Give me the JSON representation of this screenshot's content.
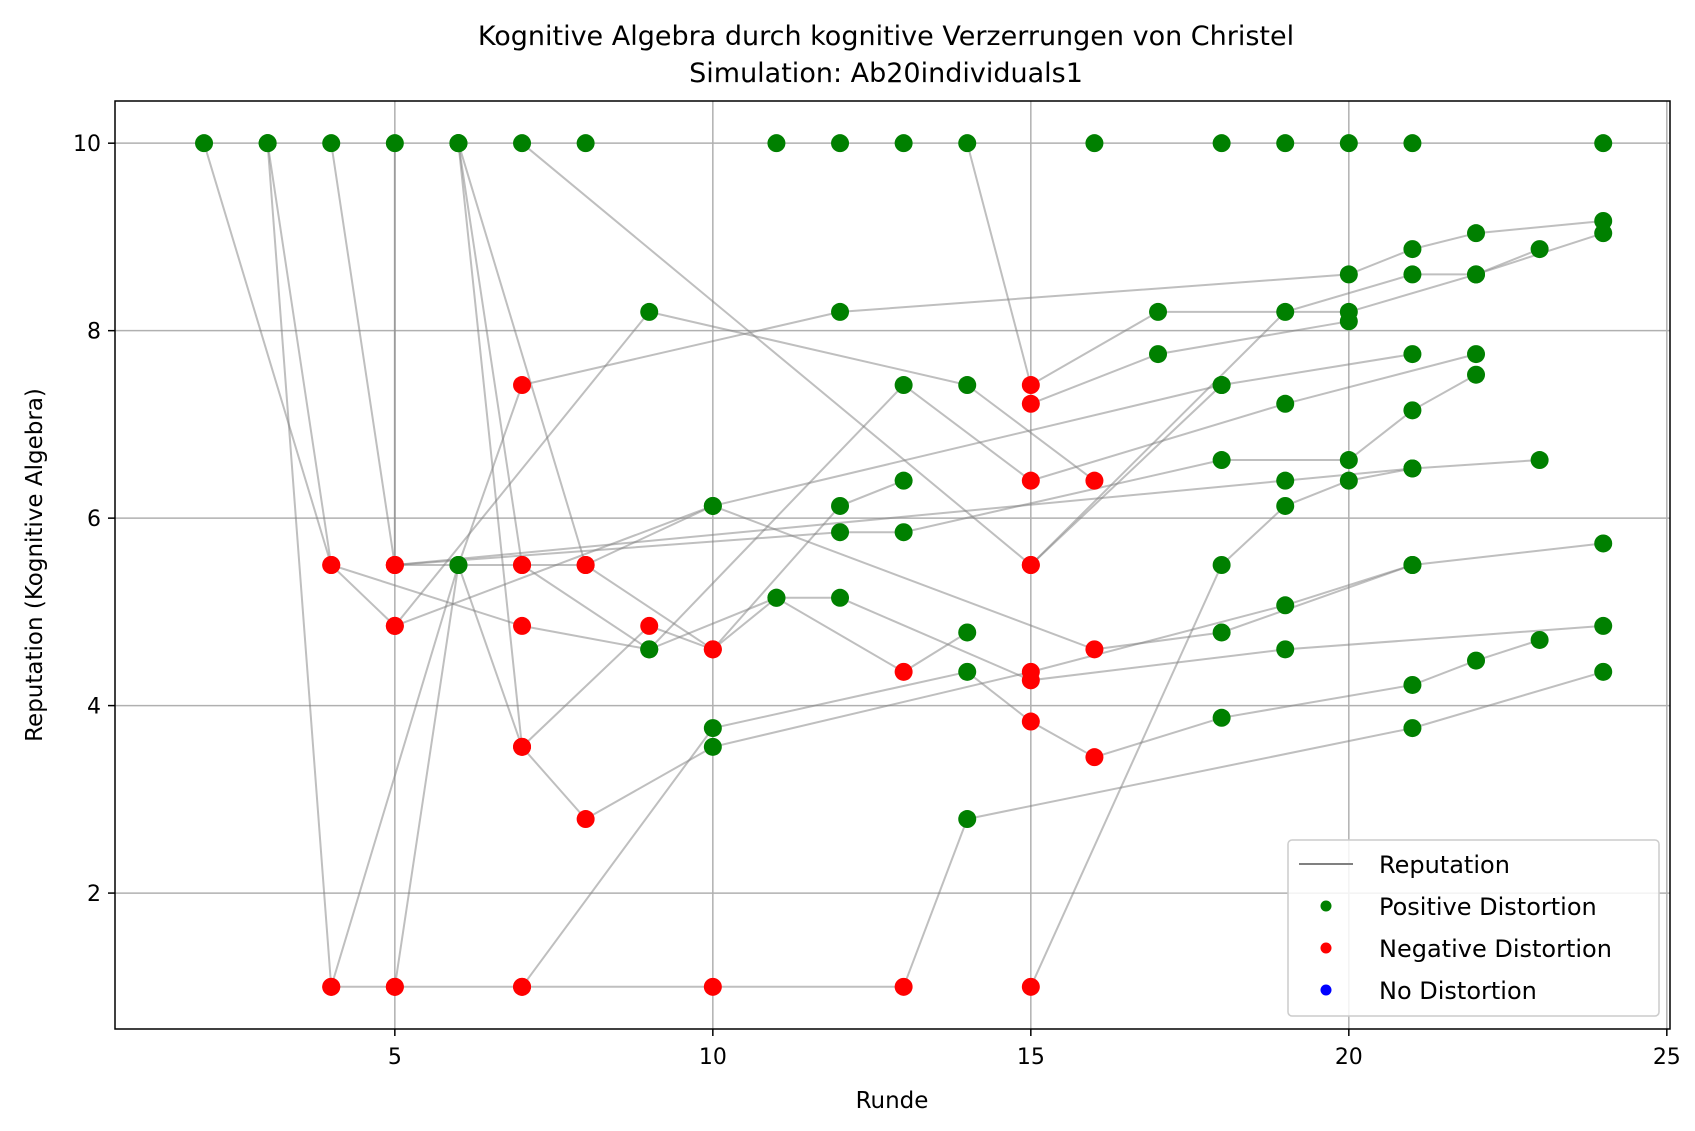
{
  "chart_data": {
    "type": "scatter",
    "title": "Kognitive Algebra durch kognitive Verzerrungen von Christel",
    "subtitle": "Simulation: Ab20individuals1",
    "xlabel": "Runde",
    "ylabel": "Reputation (Kognitive Algebra)",
    "xlim": [
      0.6,
      25.05
    ],
    "ylim": [
      0.55,
      10.45
    ],
    "xticks": [
      5,
      10,
      15,
      20,
      25
    ],
    "yticks": [
      2,
      4,
      6,
      8,
      10
    ],
    "grid": true,
    "legend_position": "lower right",
    "legend": [
      {
        "label": "Reputation",
        "kind": "line",
        "color": "#808080"
      },
      {
        "label": "Positive Distortion",
        "kind": "marker",
        "color": "#008000"
      },
      {
        "label": "Negative Distortion",
        "kind": "marker",
        "color": "#ff0000"
      },
      {
        "label": "No Distortion",
        "kind": "marker",
        "color": "#0000ff"
      }
    ],
    "colors": {
      "positive": "#008000",
      "negative": "#ff0000",
      "none": "#0000ff",
      "line": "#808080",
      "grid": "#b0b0b0"
    },
    "trajectories": [
      {
        "points": [
          [
            2,
            10,
            "p"
          ],
          [
            4,
            5.5,
            "n"
          ],
          [
            5,
            4.85,
            "n"
          ],
          [
            9,
            8.2,
            "p"
          ],
          [
            14,
            7.42,
            "p"
          ],
          [
            16,
            6.4,
            "n"
          ]
        ]
      },
      {
        "points": [
          [
            3,
            10,
            "p"
          ],
          [
            4,
            5.5,
            "n"
          ],
          [
            7,
            4.85,
            "n"
          ],
          [
            9,
            4.6,
            "p"
          ],
          [
            13,
            7.42,
            "p"
          ],
          [
            15,
            6.4,
            "n"
          ],
          [
            19,
            7.22,
            "p"
          ],
          [
            22,
            7.75,
            "p"
          ]
        ]
      },
      {
        "points": [
          [
            3,
            10,
            "p"
          ],
          [
            4,
            1,
            "n"
          ],
          [
            6,
            5.5,
            "p"
          ],
          [
            7,
            3.56,
            "n"
          ],
          [
            9,
            4.85,
            "n"
          ],
          [
            10,
            4.6,
            "n"
          ],
          [
            12,
            6.13,
            "p"
          ],
          [
            13,
            6.4,
            "p"
          ]
        ]
      },
      {
        "points": [
          [
            4,
            10,
            "p"
          ],
          [
            5,
            5.5,
            "n"
          ],
          [
            19,
            6.4,
            "p"
          ],
          [
            21,
            6.53,
            "p"
          ],
          [
            23,
            6.62,
            "p"
          ]
        ]
      },
      {
        "points": [
          [
            5,
            10,
            "p"
          ],
          [
            5,
            5.5,
            "n"
          ],
          [
            7,
            5.5,
            "n"
          ],
          [
            8,
            5.5,
            "n"
          ],
          [
            10,
            6.13,
            "p"
          ],
          [
            16,
            4.6,
            "n"
          ],
          [
            18,
            4.78,
            "p"
          ],
          [
            21,
            5.5,
            "p"
          ],
          [
            24,
            5.73,
            "p"
          ]
        ]
      },
      {
        "points": [
          [
            6,
            10,
            "p"
          ],
          [
            7,
            5.5,
            "n"
          ],
          [
            9,
            4.6,
            "p"
          ],
          [
            11,
            5.15,
            "p"
          ],
          [
            12,
            5.15,
            "p"
          ],
          [
            15,
            4.27,
            "n"
          ],
          [
            19,
            4.6,
            "p"
          ],
          [
            24,
            4.85,
            "p"
          ]
        ]
      },
      {
        "points": [
          [
            6,
            10,
            "p"
          ],
          [
            8,
            5.5,
            "n"
          ],
          [
            10,
            4.6,
            "n"
          ],
          [
            11,
            5.15,
            "p"
          ],
          [
            13,
            4.36,
            "n"
          ],
          [
            14,
            4.78,
            "p"
          ]
        ]
      },
      {
        "points": [
          [
            6,
            10,
            "p"
          ],
          [
            7,
            3.56,
            "n"
          ],
          [
            8,
            2.79,
            "n"
          ],
          [
            10,
            3.56,
            "p"
          ],
          [
            15,
            4.36,
            "n"
          ],
          [
            19,
            5.07,
            "p"
          ],
          [
            21,
            5.5,
            "p"
          ]
        ]
      },
      {
        "points": [
          [
            7,
            10,
            "p"
          ],
          [
            15,
            5.5,
            "n"
          ],
          [
            19,
            8.2,
            "p"
          ],
          [
            21,
            8.6,
            "p"
          ],
          [
            22,
            8.6,
            "p"
          ],
          [
            24,
            9.04,
            "p"
          ]
        ]
      },
      {
        "points": [
          [
            4,
            1,
            "n"
          ],
          [
            5,
            1,
            "n"
          ],
          [
            7,
            1,
            "n"
          ],
          [
            10,
            1,
            "n"
          ],
          [
            13,
            1,
            "n"
          ],
          [
            14,
            2.79,
            "p"
          ],
          [
            21,
            3.76,
            "p"
          ],
          [
            24,
            4.36,
            "p"
          ]
        ]
      },
      {
        "points": [
          [
            5,
            1,
            "n"
          ],
          [
            6,
            5.5,
            "p"
          ],
          [
            7,
            7.42,
            "n"
          ],
          [
            12,
            8.2,
            "p"
          ],
          [
            20,
            8.6,
            "p"
          ],
          [
            21,
            8.87,
            "p"
          ],
          [
            22,
            9.04,
            "p"
          ],
          [
            24,
            9.17,
            "p"
          ]
        ]
      },
      {
        "points": [
          [
            7,
            1,
            "n"
          ],
          [
            10,
            3.76,
            "p"
          ],
          [
            14,
            4.36,
            "p"
          ],
          [
            15,
            3.83,
            "n"
          ],
          [
            16,
            3.45,
            "n"
          ],
          [
            18,
            3.87,
            "p"
          ],
          [
            21,
            4.22,
            "p"
          ],
          [
            22,
            4.48,
            "p"
          ],
          [
            23,
            4.7,
            "p"
          ]
        ]
      },
      {
        "points": [
          [
            15,
            1,
            "n"
          ],
          [
            18,
            5.5,
            "p"
          ],
          [
            19,
            6.13,
            "p"
          ],
          [
            20,
            6.4,
            "p"
          ],
          [
            21,
            6.53,
            "p"
          ]
        ]
      },
      {
        "points": [
          [
            14,
            10,
            "p"
          ],
          [
            15,
            7.42,
            "n"
          ],
          [
            17,
            8.2,
            "p"
          ],
          [
            20,
            8.2,
            "p"
          ],
          [
            22,
            8.6,
            "p"
          ],
          [
            23,
            8.87,
            "p"
          ]
        ]
      },
      {
        "points": [
          [
            15,
            7.22,
            "n"
          ],
          [
            17,
            7.75,
            "p"
          ],
          [
            20,
            8.1,
            "p"
          ]
        ]
      },
      {
        "points": [
          [
            5,
            5.5,
            "n"
          ],
          [
            12,
            5.85,
            "p"
          ],
          [
            13,
            5.85,
            "p"
          ],
          [
            18,
            6.62,
            "p"
          ],
          [
            20,
            6.62,
            "p"
          ],
          [
            21,
            7.15,
            "p"
          ],
          [
            22,
            7.53,
            "p"
          ]
        ]
      },
      {
        "points": [
          [
            5,
            4.85,
            "n"
          ],
          [
            10,
            6.13,
            "p"
          ],
          [
            18,
            7.42,
            "p"
          ]
        ]
      },
      {
        "points": [
          [
            15,
            5.5,
            "n"
          ],
          [
            18,
            7.42,
            "p"
          ],
          [
            21,
            7.75,
            "p"
          ]
        ]
      },
      {
        "points": [
          [
            8,
            10,
            "p"
          ]
        ]
      },
      {
        "points": [
          [
            11,
            10,
            "p"
          ]
        ]
      },
      {
        "points": [
          [
            12,
            10,
            "p"
          ]
        ]
      },
      {
        "points": [
          [
            13,
            10,
            "p"
          ]
        ]
      },
      {
        "points": [
          [
            16,
            10,
            "p"
          ]
        ]
      },
      {
        "points": [
          [
            18,
            10,
            "p"
          ]
        ]
      },
      {
        "points": [
          [
            19,
            10,
            "p"
          ]
        ]
      },
      {
        "points": [
          [
            20,
            10,
            "p"
          ]
        ]
      },
      {
        "points": [
          [
            21,
            10,
            "p"
          ]
        ]
      },
      {
        "points": [
          [
            24,
            10,
            "p"
          ]
        ]
      }
    ]
  }
}
